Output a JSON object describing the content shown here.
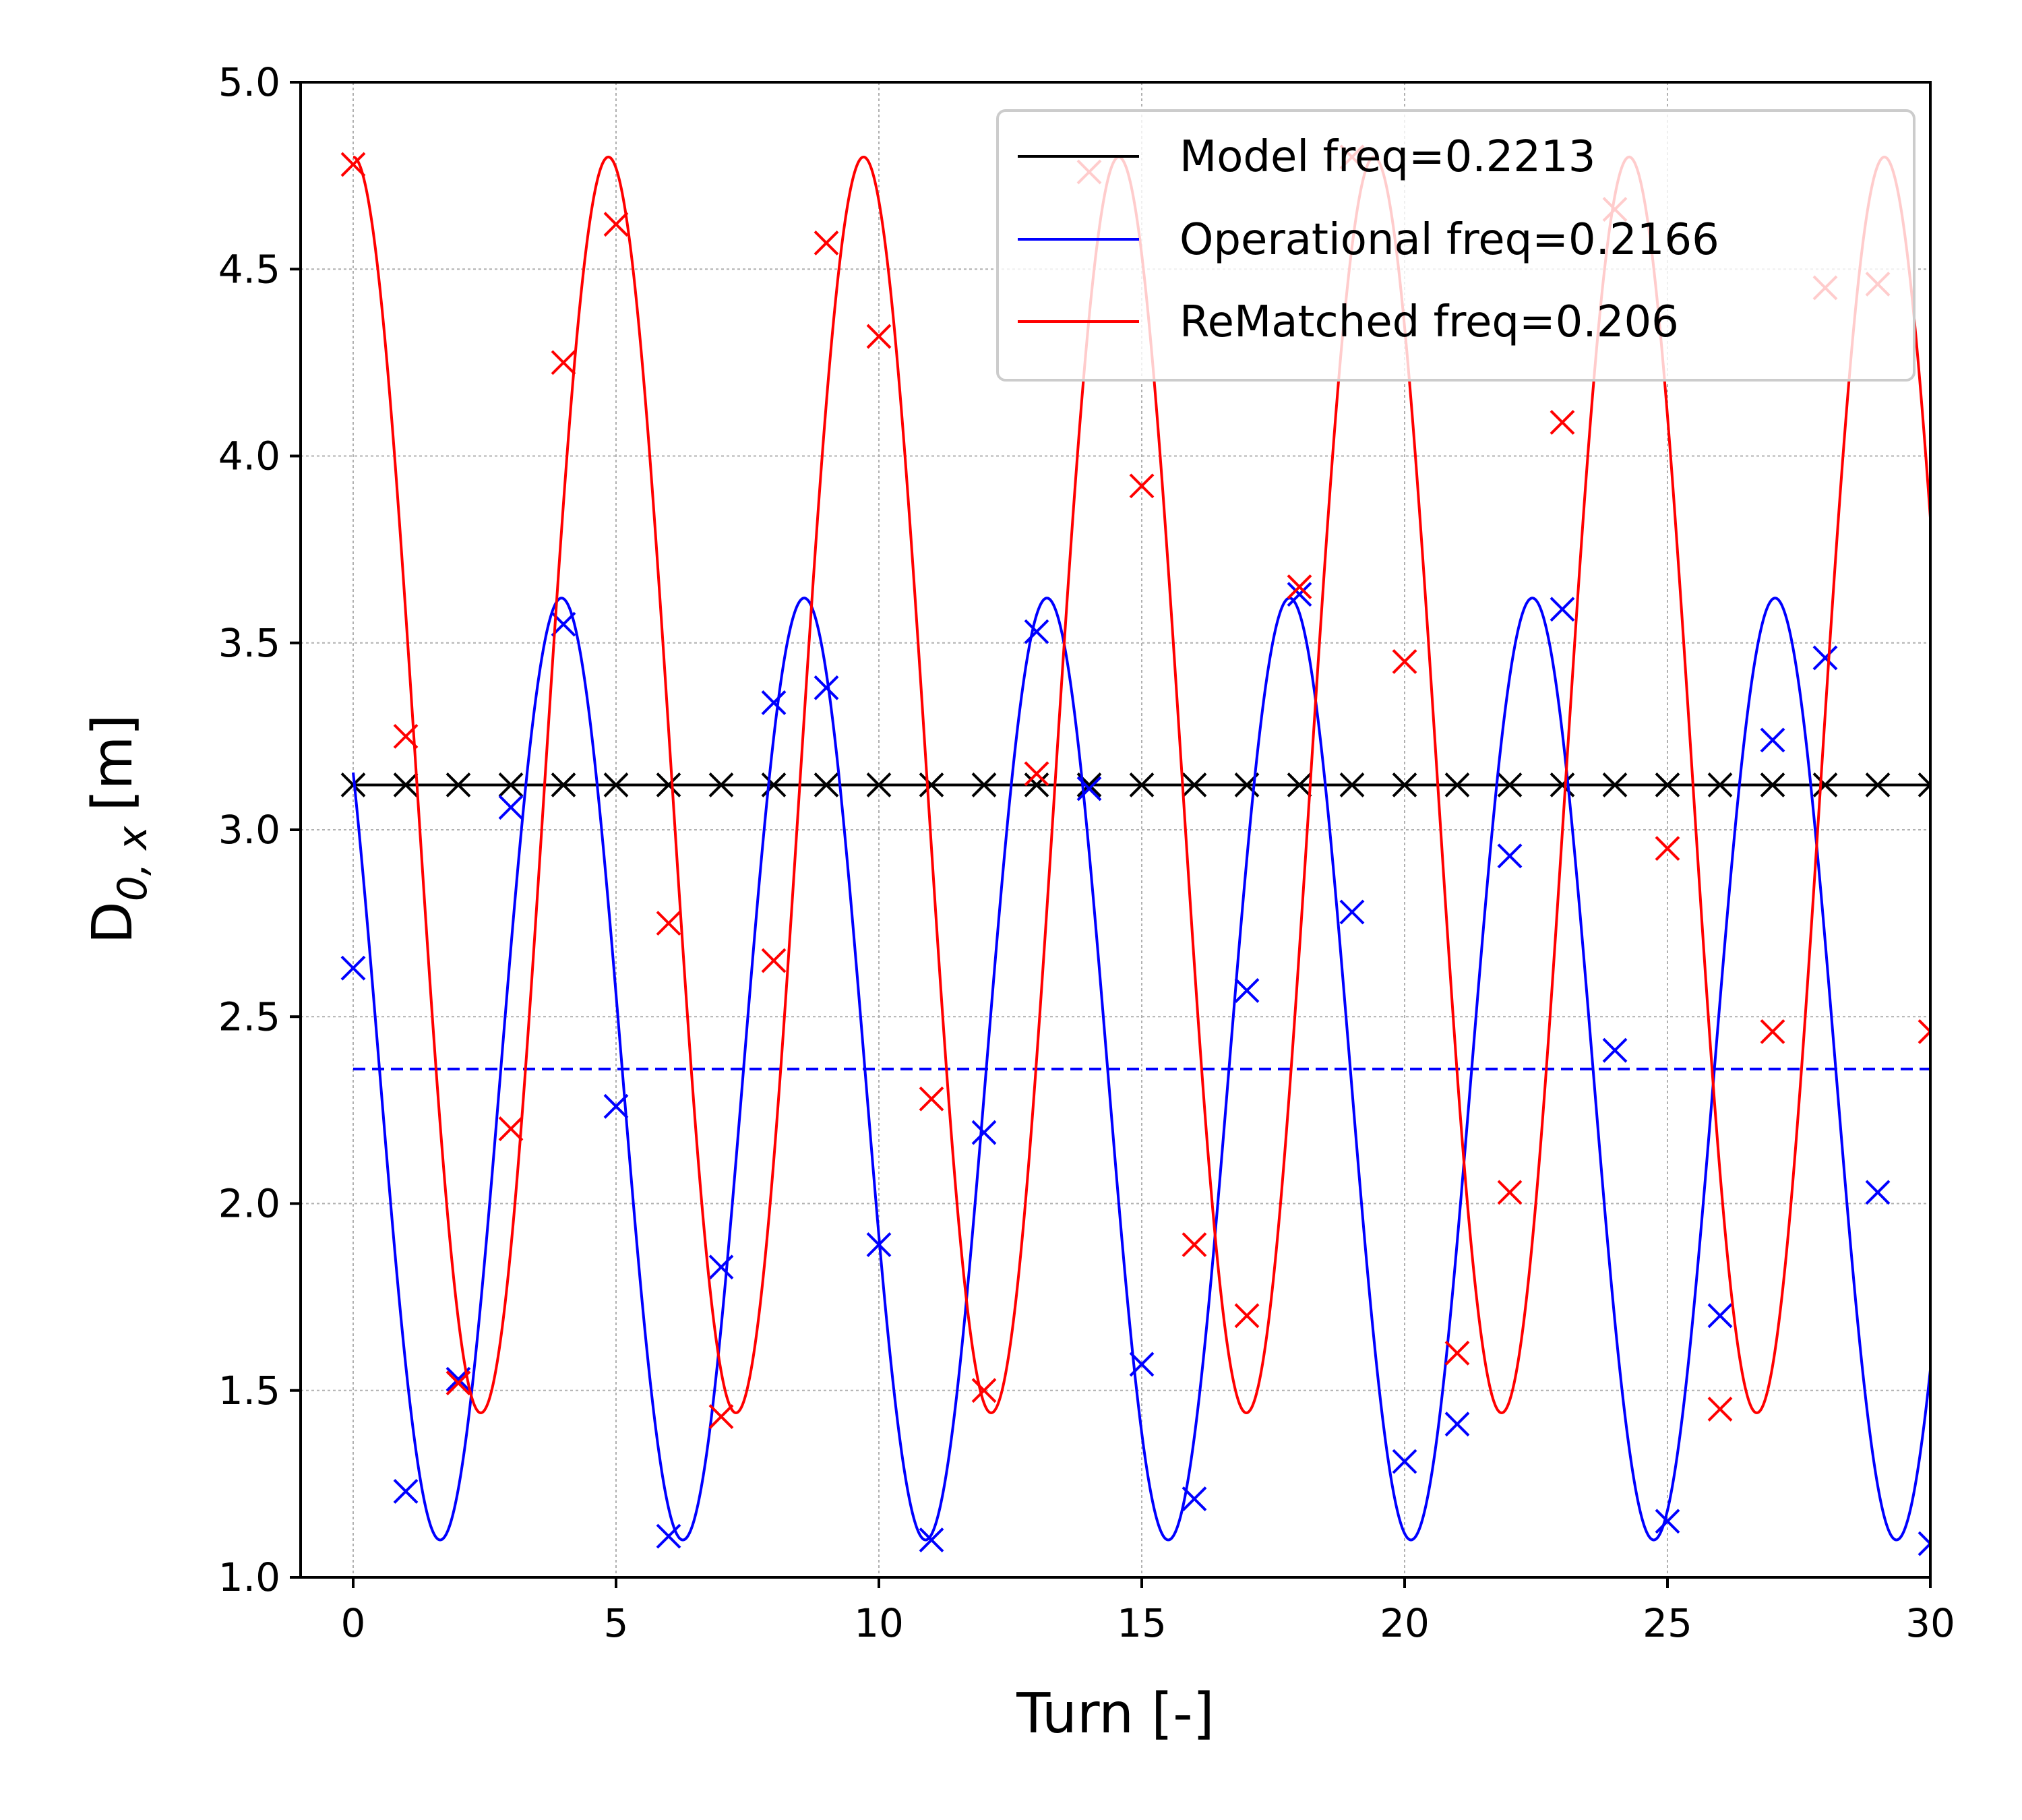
{
  "chart_data": {
    "type": "line",
    "xlabel": "Turn [-]",
    "ylabel_main": "D",
    "ylabel_sub": "0, x",
    "ylabel_unit": "[m]",
    "xlim": [
      -1,
      30
    ],
    "ylim": [
      1.0,
      5.0
    ],
    "xticks": [
      0,
      5,
      10,
      15,
      20,
      25,
      30
    ],
    "xtick_labels": [
      "0",
      "5",
      "10",
      "15",
      "20",
      "25",
      "30"
    ],
    "yticks": [
      1.0,
      1.5,
      2.0,
      2.5,
      3.0,
      3.5,
      4.0,
      4.5,
      5.0
    ],
    "ytick_labels": [
      "1.0",
      "1.5",
      "2.0",
      "2.5",
      "3.0",
      "3.5",
      "4.0",
      "4.5",
      "5.0"
    ],
    "grid": true,
    "legend_position": "top-right",
    "series": [
      {
        "name": "Model freq=0.2213",
        "color": "#000000",
        "fit": {
          "mean": 3.12,
          "amplitude": 0.0,
          "frequency": 0.2213,
          "phase": 0.0,
          "x_range": [
            0,
            30
          ]
        },
        "markers_x": [
          0,
          1,
          2,
          3,
          4,
          5,
          6,
          7,
          8,
          9,
          10,
          11,
          12,
          13,
          14,
          15,
          16,
          17,
          18,
          19,
          20,
          21,
          22,
          23,
          24,
          25,
          26,
          27,
          28,
          29,
          30
        ],
        "markers_y": [
          3.12,
          3.12,
          3.12,
          3.12,
          3.12,
          3.12,
          3.12,
          3.12,
          3.12,
          3.12,
          3.12,
          3.12,
          3.12,
          3.12,
          3.12,
          3.12,
          3.12,
          3.12,
          3.12,
          3.12,
          3.12,
          3.12,
          3.12,
          3.12,
          3.12,
          3.12,
          3.12,
          3.12,
          3.12,
          3.12,
          3.12
        ]
      },
      {
        "name": "Operational freq=0.2166",
        "color": "#0000ff",
        "fit": {
          "mean": 2.36,
          "amplitude": 1.26,
          "frequency": 0.2166,
          "phase": 0.89,
          "x_range": [
            0,
            30
          ]
        },
        "mean_line": 2.36,
        "markers_x": [
          0,
          1,
          2,
          3,
          4,
          5,
          6,
          7,
          8,
          9,
          10,
          11,
          12,
          13,
          14,
          15,
          16,
          17,
          18,
          19,
          20,
          21,
          22,
          23,
          24,
          25,
          26,
          27,
          28,
          29,
          30
        ],
        "markers_y": [
          2.63,
          1.23,
          1.53,
          3.06,
          3.55,
          2.26,
          1.11,
          1.83,
          3.34,
          3.38,
          1.89,
          1.1,
          2.19,
          3.53,
          3.11,
          1.57,
          1.21,
          2.57,
          3.63,
          2.78,
          1.31,
          1.41,
          2.93,
          3.59,
          2.41,
          1.15,
          1.7,
          3.24,
          3.46,
          2.03,
          1.09
        ]
      },
      {
        "name": "ReMatched freq=0.206",
        "color": "#ff0000",
        "fit": {
          "mean": 3.12,
          "amplitude": 1.68,
          "frequency": 0.206,
          "phase": 0.0,
          "x_range": [
            0,
            30
          ]
        },
        "markers_x": [
          0,
          1,
          2,
          3,
          4,
          5,
          6,
          7,
          8,
          9,
          10,
          11,
          12,
          13,
          14,
          15,
          16,
          17,
          18,
          19,
          20,
          21,
          22,
          23,
          24,
          25,
          26,
          27,
          28,
          29,
          30
        ],
        "markers_y": [
          4.78,
          3.25,
          1.52,
          2.2,
          4.25,
          4.62,
          2.75,
          1.43,
          2.65,
          4.57,
          4.32,
          2.28,
          1.5,
          3.15,
          4.76,
          3.92,
          1.89,
          1.7,
          3.65,
          4.8,
          3.45,
          1.6,
          2.03,
          4.09,
          4.66,
          2.95,
          1.45,
          2.46,
          4.45,
          4.46,
          2.46
        ]
      }
    ]
  }
}
